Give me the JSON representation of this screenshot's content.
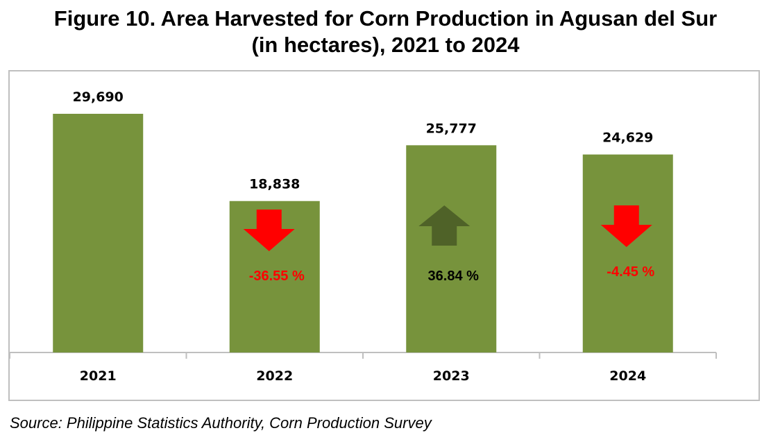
{
  "title_line1": "Figure 10. Area Harvested for Corn Production in Agusan del Sur",
  "title_line2": "(in hectares), 2021 to 2024",
  "source": "Source: Philippine Statistics Authority, Corn Production Survey",
  "colors": {
    "bar": "#77933c",
    "up_arrow": "#4f6228",
    "down_arrow": "#ff0000",
    "pct_down_text": "#ff0000",
    "pct_up_text": "#000000",
    "axis": "#bfbfbf"
  },
  "chart_data": {
    "type": "bar",
    "categories": [
      "2021",
      "2022",
      "2023",
      "2024"
    ],
    "values": [
      29690,
      18838,
      25777,
      24629
    ],
    "value_labels": [
      "29,690",
      "18,838",
      "25,777",
      "24,629"
    ],
    "annotations": [
      null,
      {
        "text": "-36.55 %",
        "direction": "down"
      },
      {
        "text": "36.84 %",
        "direction": "up"
      },
      {
        "text": "-4.45 %",
        "direction": "down"
      }
    ],
    "xlabel": "",
    "ylabel": "",
    "ylim": [
      0,
      32000
    ],
    "grid": false,
    "legend": "none"
  }
}
